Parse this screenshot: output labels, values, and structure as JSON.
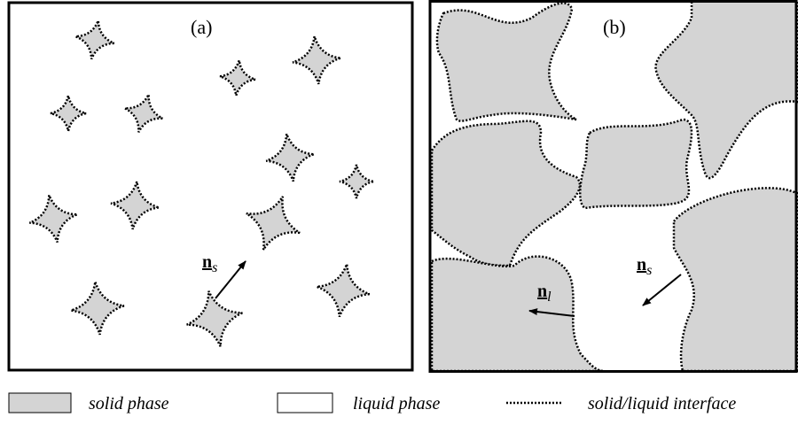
{
  "panels": [
    {
      "label": "(a)",
      "vectors": [
        {
          "symbol": "n",
          "subscript": "s"
        }
      ]
    },
    {
      "label": "(b)",
      "vectors": [
        {
          "symbol": "n",
          "subscript": "l"
        },
        {
          "symbol": "n",
          "subscript": "s"
        }
      ]
    }
  ],
  "legend": [
    {
      "label": "solid phase"
    },
    {
      "label": "liquid phase"
    },
    {
      "label": "solid/liquid interface"
    }
  ]
}
